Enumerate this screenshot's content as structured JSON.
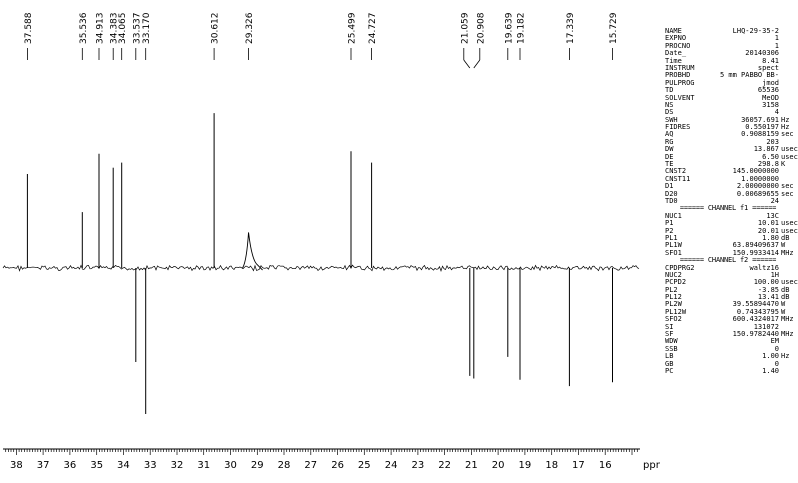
{
  "chart_data": {
    "type": "line",
    "xlabel": "ppm",
    "xlim": [
      38.5,
      14.7
    ],
    "ticks": [
      38,
      37,
      36,
      35,
      34,
      33,
      32,
      31,
      30,
      29,
      28,
      27,
      26,
      25,
      24,
      23,
      22,
      21,
      20,
      19,
      18,
      17,
      16
    ],
    "peaks": [
      {
        "ppm": 37.588,
        "label": "37.588",
        "intensity": 0.74
      },
      {
        "ppm": 35.536,
        "label": "35.536",
        "intensity": 0.44
      },
      {
        "ppm": 34.913,
        "label": "34.913",
        "intensity": 0.9
      },
      {
        "ppm": 34.383,
        "label": "34.383",
        "intensity": 0.79
      },
      {
        "ppm": 34.065,
        "label": "34.065",
        "intensity": 0.83
      },
      {
        "ppm": 33.537,
        "label": "33.537",
        "intensity": -0.74
      },
      {
        "ppm": 33.17,
        "label": "33.170",
        "intensity": -1.15
      },
      {
        "ppm": 30.612,
        "label": "30.612",
        "intensity": 1.22
      },
      {
        "ppm": 29.326,
        "label": "29.326",
        "intensity": 0.28
      },
      {
        "ppm": 25.499,
        "label": "25.499",
        "intensity": 0.92
      },
      {
        "ppm": 24.727,
        "label": "24.727",
        "intensity": 0.83
      },
      {
        "ppm": 21.059,
        "label": "21.059",
        "intensity": -0.85
      },
      {
        "ppm": 20.908,
        "label": "20.908",
        "intensity": -0.87
      },
      {
        "ppm": 19.639,
        "label": "19.639",
        "intensity": -0.7
      },
      {
        "ppm": 19.182,
        "label": "19.182",
        "intensity": -0.88
      },
      {
        "ppm": 17.339,
        "label": "17.339",
        "intensity": -0.93
      },
      {
        "ppm": 15.729,
        "label": "15.729",
        "intensity": -0.9
      }
    ]
  },
  "parameters": {
    "general": [
      {
        "name": "NAME",
        "value": "LHQ-29-35-2",
        "unit": ""
      },
      {
        "name": "EXPNO",
        "value": "1",
        "unit": ""
      },
      {
        "name": "PROCNO",
        "value": "1",
        "unit": ""
      },
      {
        "name": "Date_",
        "value": "20140306",
        "unit": ""
      },
      {
        "name": "Time",
        "value": "8.41",
        "unit": ""
      },
      {
        "name": "INSTRUM",
        "value": "spect",
        "unit": ""
      },
      {
        "name": "PROBHD",
        "value": "5 mm PABBO BB-",
        "unit": ""
      },
      {
        "name": "PULPROG",
        "value": "jmod",
        "unit": ""
      },
      {
        "name": "TD",
        "value": "65536",
        "unit": ""
      },
      {
        "name": "SOLVENT",
        "value": "MeOD",
        "unit": ""
      },
      {
        "name": "NS",
        "value": "3158",
        "unit": ""
      },
      {
        "name": "DS",
        "value": "4",
        "unit": ""
      },
      {
        "name": "SWH",
        "value": "36057.691",
        "unit": "Hz"
      },
      {
        "name": "FIDRES",
        "value": "0.550197",
        "unit": "Hz"
      },
      {
        "name": "AQ",
        "value": "0.9088159",
        "unit": "sec"
      },
      {
        "name": "RG",
        "value": "203",
        "unit": ""
      },
      {
        "name": "DW",
        "value": "13.867",
        "unit": "usec"
      },
      {
        "name": "DE",
        "value": "6.50",
        "unit": "usec"
      },
      {
        "name": "TE",
        "value": "298.8",
        "unit": "K"
      },
      {
        "name": "CNST2",
        "value": "145.0000000",
        "unit": ""
      },
      {
        "name": "CNST11",
        "value": "1.0000000",
        "unit": ""
      },
      {
        "name": "D1",
        "value": "2.00000000",
        "unit": "sec"
      },
      {
        "name": "D20",
        "value": "0.00689655",
        "unit": "sec"
      },
      {
        "name": "TD0",
        "value": "24",
        "unit": ""
      }
    ],
    "channel_f1_header": "====== CHANNEL f1 ======",
    "channel_f1": [
      {
        "name": "NUC1",
        "value": "13C",
        "unit": ""
      },
      {
        "name": "P1",
        "value": "10.01",
        "unit": "usec"
      },
      {
        "name": "P2",
        "value": "20.01",
        "unit": "usec"
      },
      {
        "name": "PL1",
        "value": "1.80",
        "unit": "dB"
      },
      {
        "name": "PL1W",
        "value": "63.89409637",
        "unit": "W"
      },
      {
        "name": "SFO1",
        "value": "150.9933414",
        "unit": "MHz"
      }
    ],
    "channel_f2_header": "====== CHANNEL f2 ======",
    "channel_f2": [
      {
        "name": "CPDPRG2",
        "value": "waltz16",
        "unit": ""
      },
      {
        "name": "NUC2",
        "value": "1H",
        "unit": ""
      },
      {
        "name": "PCPD2",
        "value": "100.00",
        "unit": "usec"
      },
      {
        "name": "PL2",
        "value": "-3.85",
        "unit": "dB"
      },
      {
        "name": "PL12",
        "value": "13.41",
        "unit": "dB"
      },
      {
        "name": "PL2W",
        "value": "39.55894470",
        "unit": "W"
      },
      {
        "name": "PL12W",
        "value": "0.74343795",
        "unit": "W"
      },
      {
        "name": "SFO2",
        "value": "600.4324017",
        "unit": "MHz"
      },
      {
        "name": "SI",
        "value": "131072",
        "unit": ""
      },
      {
        "name": "SF",
        "value": "150.9782440",
        "unit": "MHz"
      },
      {
        "name": "WDW",
        "value": "EM",
        "unit": ""
      },
      {
        "name": "SSB",
        "value": "0",
        "unit": ""
      },
      {
        "name": "LB",
        "value": "1.00",
        "unit": "Hz"
      },
      {
        "name": "GB",
        "value": "0",
        "unit": ""
      },
      {
        "name": "PC",
        "value": "1.40",
        "unit": ""
      }
    ]
  }
}
